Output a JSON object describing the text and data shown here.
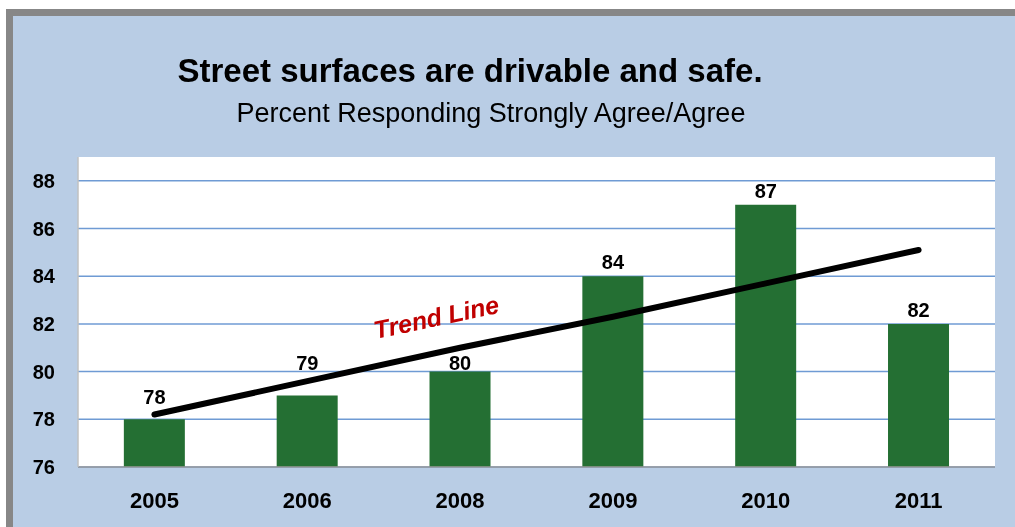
{
  "chart_data": {
    "type": "bar",
    "title": "Street surfaces are drivable and safe.",
    "subtitle": "Percent Responding Strongly Agree/Agree",
    "categories": [
      "2005",
      "2006",
      "2008",
      "2009",
      "2010",
      "2011"
    ],
    "series": [
      {
        "color": "#246f33",
        "values": [
          78,
          79,
          80,
          84,
          87,
          82
        ],
        "value_labels": [
          "78",
          "79",
          "80",
          "84",
          "87",
          "82"
        ]
      },
      {
        "type": "line",
        "name": "Trend Line",
        "color": "#000000",
        "values": [
          78.2,
          79.6,
          81.0,
          82.3,
          83.7,
          85.1
        ],
        "marker": "none",
        "line_style": "solid"
      }
    ],
    "ylim": [
      76,
      89
    ],
    "yticks": [
      76,
      78,
      80,
      82,
      84,
      86,
      88
    ],
    "grid": "y"
  }
}
